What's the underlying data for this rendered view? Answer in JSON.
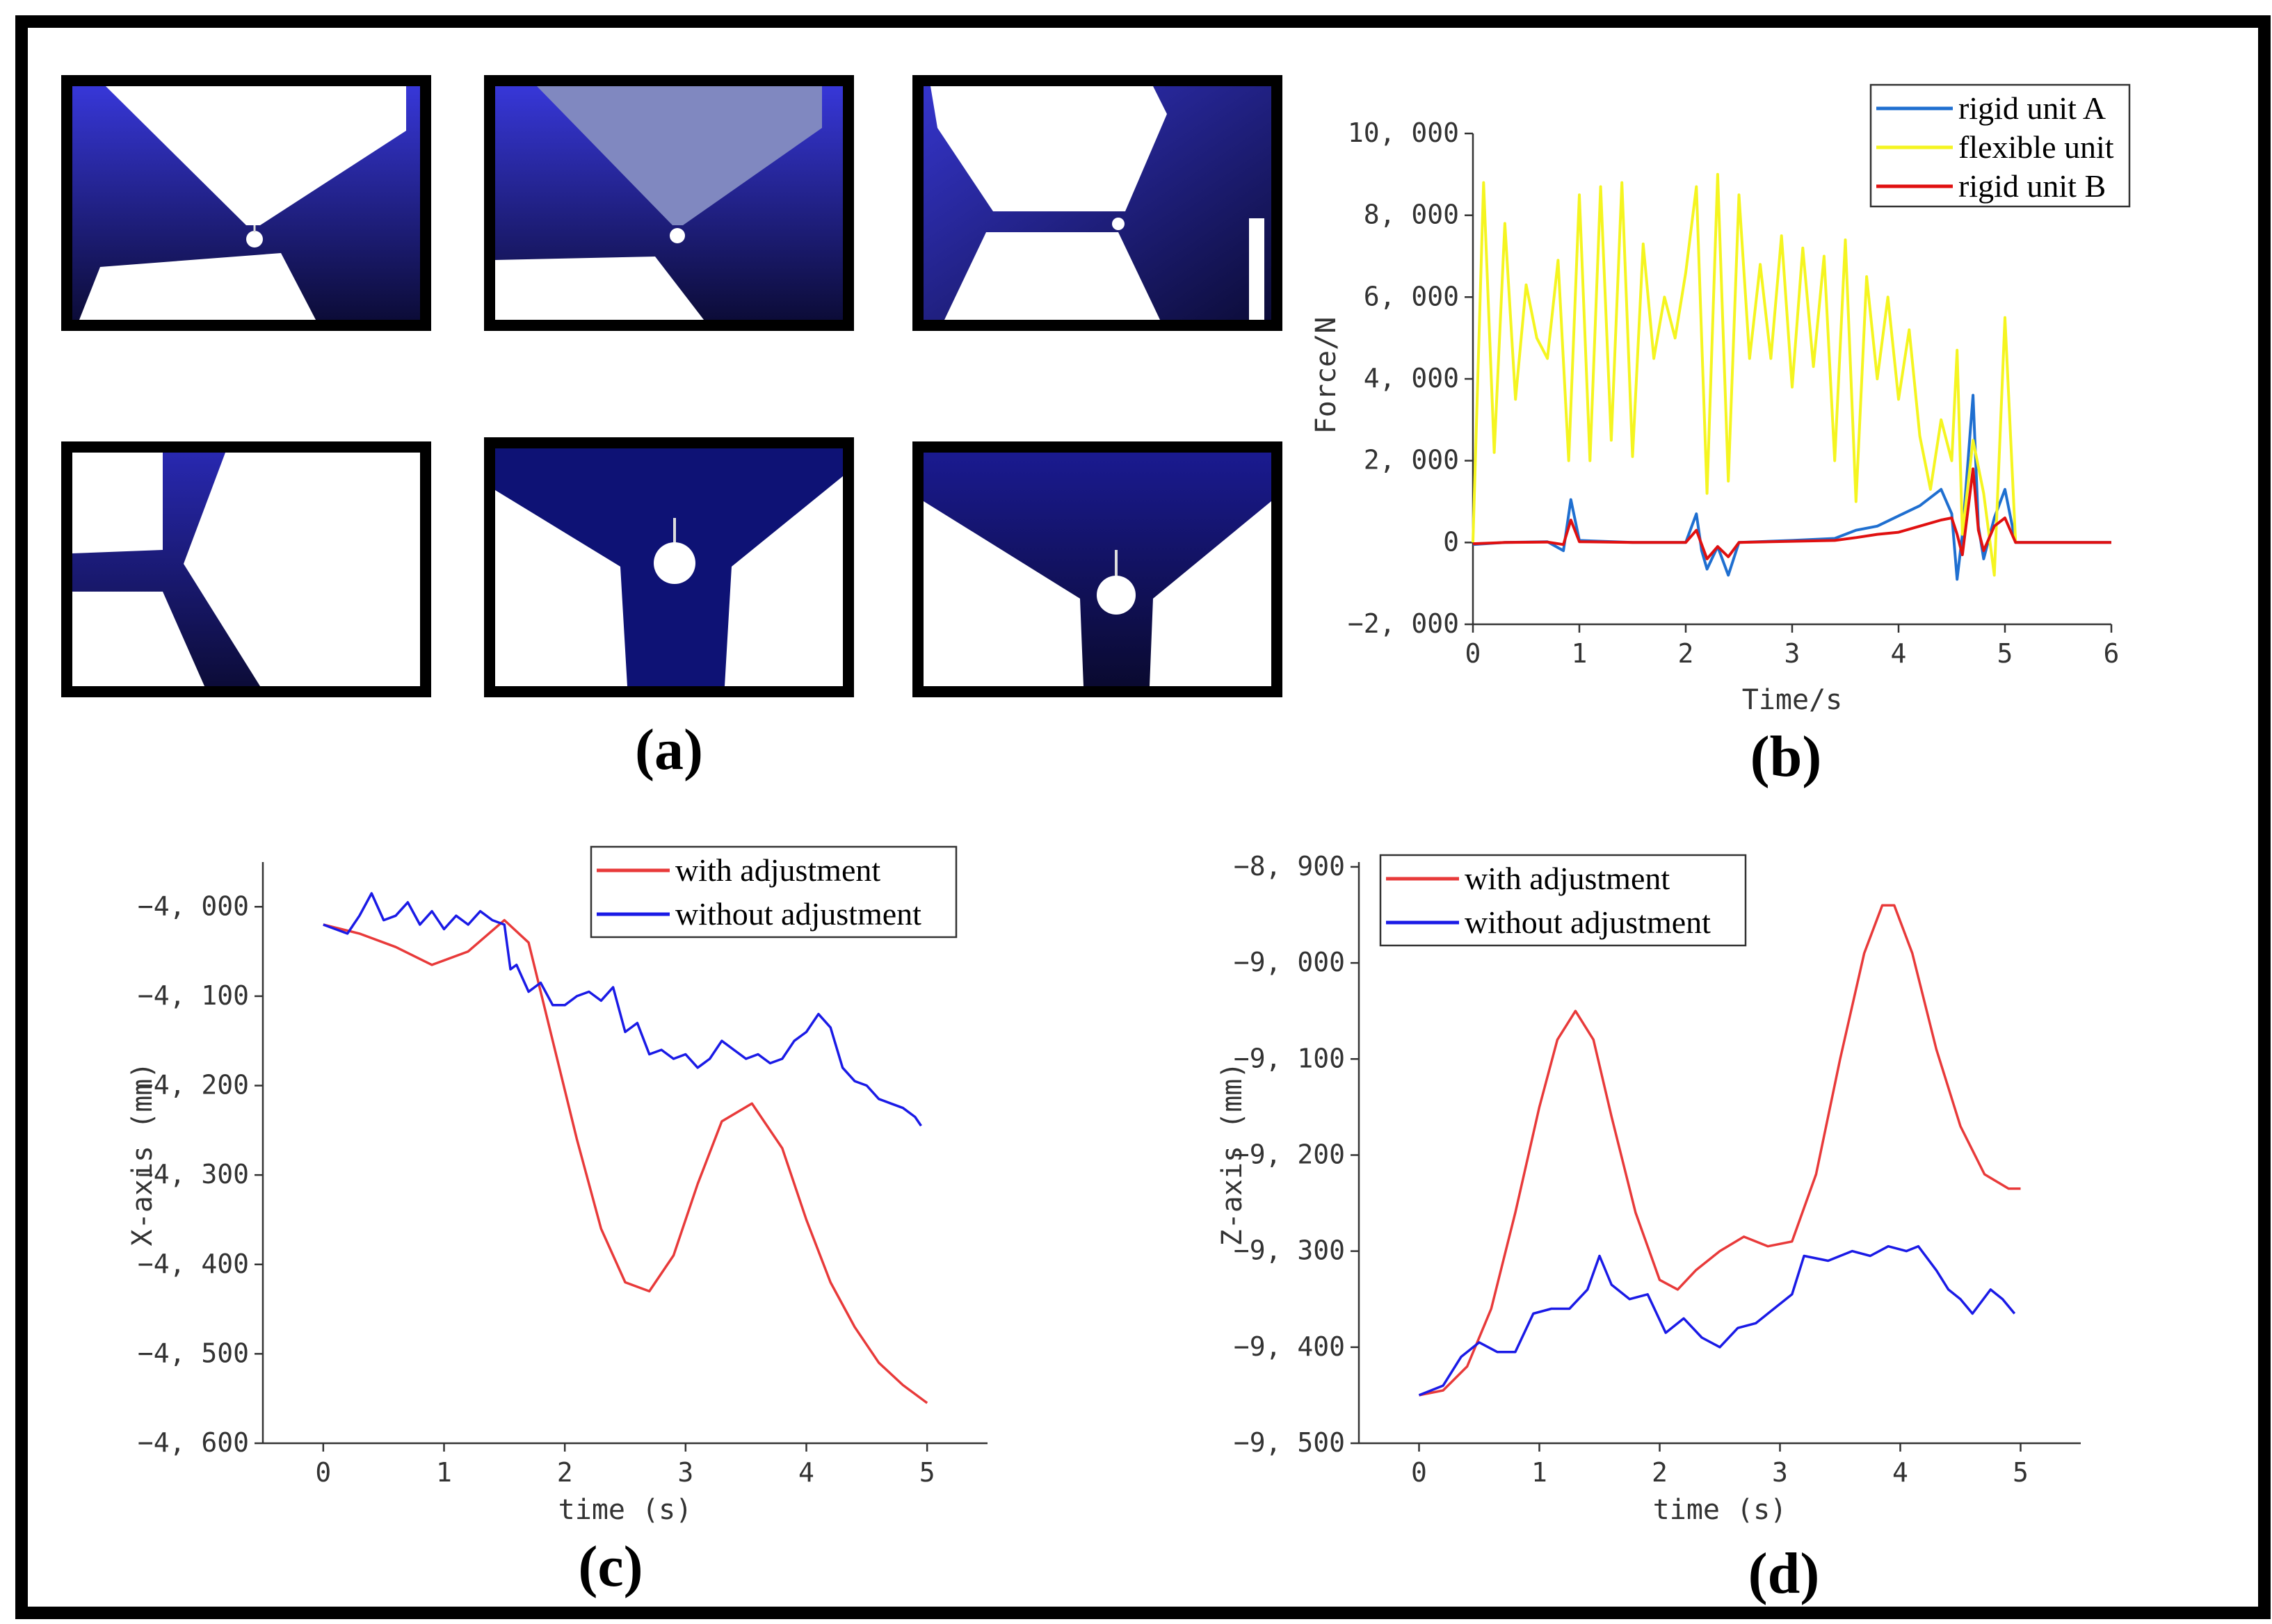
{
  "panel_labels": {
    "a": "(a)",
    "b": "(b)",
    "c": "(c)",
    "d": "(d)"
  },
  "chart_data": [
    {
      "id": "b",
      "type": "line",
      "xlabel": "Time/s",
      "ylabel": "Force/N",
      "xlim": [
        0,
        6
      ],
      "ylim": [
        -2000,
        10000
      ],
      "xticks": [
        0,
        1,
        2,
        3,
        4,
        5,
        6
      ],
      "xtick_labels": [
        "0",
        "1",
        "2",
        "3",
        "4",
        "5",
        "6"
      ],
      "yticks": [
        -2000,
        0,
        2000,
        4000,
        6000,
        8000,
        10000
      ],
      "ytick_labels": [
        "−2, 000",
        "0",
        "2, 000",
        "4, 000",
        "6, 000",
        "8, 000",
        "10, 000"
      ],
      "legend_position": "top-right",
      "series": [
        {
          "name": "rigid unit A",
          "color": "#1f6fd0",
          "x": [
            0,
            0.3,
            0.7,
            0.85,
            0.92,
            1.0,
            1.5,
            2.0,
            2.1,
            2.15,
            2.2,
            2.3,
            2.4,
            2.5,
            3.0,
            3.4,
            3.6,
            3.8,
            4.0,
            4.2,
            4.4,
            4.5,
            4.55,
            4.6,
            4.7,
            4.75,
            4.8,
            4.9,
            5.0,
            5.1,
            6.0
          ],
          "y": [
            -50,
            0,
            20,
            -200,
            1050,
            50,
            0,
            0,
            700,
            -200,
            -650,
            -100,
            -800,
            0,
            50,
            100,
            300,
            400,
            650,
            900,
            1300,
            700,
            -900,
            200,
            3600,
            400,
            -400,
            600,
            1300,
            0,
            0
          ]
        },
        {
          "name": "flexible unit",
          "color": "#f5f520",
          "x": [
            0,
            0.1,
            0.2,
            0.3,
            0.4,
            0.5,
            0.6,
            0.7,
            0.8,
            0.9,
            1.0,
            1.1,
            1.2,
            1.3,
            1.4,
            1.5,
            1.6,
            1.7,
            1.8,
            1.9,
            2.0,
            2.1,
            2.2,
            2.3,
            2.4,
            2.5,
            2.6,
            2.7,
            2.8,
            2.9,
            3.0,
            3.1,
            3.2,
            3.3,
            3.4,
            3.5,
            3.6,
            3.7,
            3.8,
            3.9,
            4.0,
            4.1,
            4.2,
            4.3,
            4.4,
            4.5,
            4.55,
            4.6,
            4.7,
            4.8,
            4.9,
            5.0,
            5.1
          ],
          "y": [
            0,
            8800,
            2200,
            7800,
            3500,
            6300,
            5000,
            4500,
            6900,
            2000,
            8500,
            2000,
            8700,
            2500,
            8800,
            2100,
            7300,
            4500,
            6000,
            5000,
            6600,
            8700,
            1200,
            9000,
            1500,
            8500,
            4500,
            6800,
            4500,
            7500,
            3800,
            7200,
            4300,
            7000,
            2000,
            7400,
            1000,
            6500,
            4000,
            6000,
            3500,
            5200,
            2600,
            1300,
            3000,
            2000,
            4700,
            200,
            2500,
            1200,
            -800,
            5500,
            0
          ]
        },
        {
          "name": "rigid unit B",
          "color": "#e01010",
          "x": [
            0,
            0.3,
            0.7,
            0.85,
            0.92,
            1.0,
            1.5,
            2.0,
            2.1,
            2.2,
            2.3,
            2.4,
            2.5,
            3.0,
            3.4,
            3.6,
            3.8,
            4.0,
            4.2,
            4.4,
            4.5,
            4.55,
            4.6,
            4.7,
            4.75,
            4.8,
            4.9,
            5.0,
            5.1,
            6.0
          ],
          "y": [
            -30,
            0,
            10,
            -50,
            550,
            20,
            0,
            0,
            300,
            -400,
            -100,
            -350,
            0,
            30,
            50,
            120,
            200,
            250,
            400,
            550,
            600,
            200,
            -300,
            1800,
            300,
            -200,
            400,
            600,
            0,
            0
          ]
        }
      ]
    },
    {
      "id": "c",
      "type": "line",
      "xlabel": "time (s)",
      "ylabel": "X-axis (mm)",
      "xlim": [
        -0.5,
        5.5
      ],
      "ylim": [
        -4600,
        -3950
      ],
      "xticks": [
        0,
        1,
        2,
        3,
        4,
        5
      ],
      "xtick_labels": [
        "0",
        "1",
        "2",
        "3",
        "4",
        "5"
      ],
      "yticks": [
        -4600,
        -4500,
        -4400,
        -4300,
        -4200,
        -4100,
        -4000
      ],
      "ytick_labels": [
        "−4, 600",
        "−4, 500",
        "−4, 400",
        "−4, 300",
        "−4, 200",
        "−4, 100",
        "−4, 000"
      ],
      "legend_position": "top-right",
      "series": [
        {
          "name": "with adjustment",
          "color": "#e83a3a",
          "x": [
            0,
            0.3,
            0.6,
            0.9,
            1.2,
            1.5,
            1.7,
            1.9,
            2.1,
            2.3,
            2.5,
            2.7,
            2.9,
            3.1,
            3.3,
            3.55,
            3.8,
            4.0,
            4.2,
            4.4,
            4.6,
            4.8,
            5.0
          ],
          "y": [
            -4020,
            -4030,
            -4045,
            -4065,
            -4050,
            -4015,
            -4040,
            -4150,
            -4260,
            -4360,
            -4420,
            -4430,
            -4390,
            -4310,
            -4240,
            -4220,
            -4270,
            -4350,
            -4420,
            -4470,
            -4510,
            -4535,
            -4555
          ]
        },
        {
          "name": "without adjustment",
          "color": "#1a1ae6",
          "x": [
            0,
            0.2,
            0.3,
            0.4,
            0.5,
            0.6,
            0.7,
            0.8,
            0.9,
            1.0,
            1.1,
            1.2,
            1.3,
            1.4,
            1.5,
            1.55,
            1.6,
            1.7,
            1.8,
            1.9,
            2.0,
            2.1,
            2.2,
            2.3,
            2.4,
            2.5,
            2.6,
            2.7,
            2.8,
            2.9,
            3.0,
            3.1,
            3.2,
            3.3,
            3.4,
            3.5,
            3.6,
            3.7,
            3.8,
            3.9,
            4.0,
            4.1,
            4.2,
            4.3,
            4.4,
            4.5,
            4.6,
            4.7,
            4.8,
            4.9,
            4.95
          ],
          "y": [
            -4020,
            -4030,
            -4010,
            -3985,
            -4015,
            -4010,
            -3995,
            -4020,
            -4005,
            -4025,
            -4010,
            -4020,
            -4005,
            -4015,
            -4020,
            -4070,
            -4065,
            -4095,
            -4085,
            -4110,
            -4110,
            -4100,
            -4095,
            -4105,
            -4090,
            -4140,
            -4130,
            -4165,
            -4160,
            -4170,
            -4165,
            -4180,
            -4170,
            -4150,
            -4160,
            -4170,
            -4165,
            -4175,
            -4170,
            -4150,
            -4140,
            -4120,
            -4135,
            -4180,
            -4195,
            -4200,
            -4215,
            -4220,
            -4225,
            -4235,
            -4245
          ]
        }
      ]
    },
    {
      "id": "d",
      "type": "line",
      "xlabel": "time (s)",
      "ylabel": "Z-axis (mm)",
      "xlim": [
        -0.5,
        5.5
      ],
      "ylim": [
        -9500,
        -8895
      ],
      "xticks": [
        0,
        1,
        2,
        3,
        4,
        5
      ],
      "xtick_labels": [
        "0",
        "1",
        "2",
        "3",
        "4",
        "5"
      ],
      "yticks": [
        -9500,
        -9400,
        -9300,
        -9200,
        -9100,
        -9000,
        -8900
      ],
      "ytick_labels": [
        "−9, 500",
        "−9, 400",
        "−9, 300",
        "−9, 200",
        "−9, 100",
        "−9, 000",
        "−8, 900"
      ],
      "legend_position": "top-right",
      "series": [
        {
          "name": "with adjustment",
          "color": "#e83a3a",
          "x": [
            0,
            0.2,
            0.4,
            0.6,
            0.8,
            1.0,
            1.15,
            1.3,
            1.45,
            1.6,
            1.8,
            2.0,
            2.15,
            2.3,
            2.5,
            2.7,
            2.9,
            3.1,
            3.3,
            3.5,
            3.7,
            3.85,
            3.95,
            4.1,
            4.3,
            4.5,
            4.7,
            4.9,
            5.0
          ],
          "y": [
            -9450,
            -9445,
            -9420,
            -9360,
            -9260,
            -9150,
            -9080,
            -9050,
            -9080,
            -9160,
            -9260,
            -9330,
            -9340,
            -9320,
            -9300,
            -9285,
            -9295,
            -9290,
            -9220,
            -9100,
            -8990,
            -8940,
            -8940,
            -8990,
            -9090,
            -9170,
            -9220,
            -9235,
            -9235
          ]
        },
        {
          "name": "without adjustment",
          "color": "#1a1ae6",
          "x": [
            0,
            0.2,
            0.35,
            0.5,
            0.65,
            0.8,
            0.95,
            1.1,
            1.25,
            1.4,
            1.5,
            1.6,
            1.75,
            1.9,
            2.05,
            2.2,
            2.35,
            2.5,
            2.65,
            2.8,
            2.95,
            3.1,
            3.2,
            3.4,
            3.6,
            3.75,
            3.9,
            4.05,
            4.15,
            4.3,
            4.4,
            4.5,
            4.6,
            4.75,
            4.85,
            4.95
          ],
          "y": [
            -9450,
            -9440,
            -9410,
            -9395,
            -9405,
            -9405,
            -9365,
            -9360,
            -9360,
            -9340,
            -9305,
            -9335,
            -9350,
            -9345,
            -9385,
            -9370,
            -9390,
            -9400,
            -9380,
            -9375,
            -9360,
            -9345,
            -9305,
            -9310,
            -9300,
            -9305,
            -9295,
            -9300,
            -9295,
            -9320,
            -9340,
            -9350,
            -9365,
            -9340,
            -9350,
            -9365
          ]
        }
      ]
    }
  ]
}
